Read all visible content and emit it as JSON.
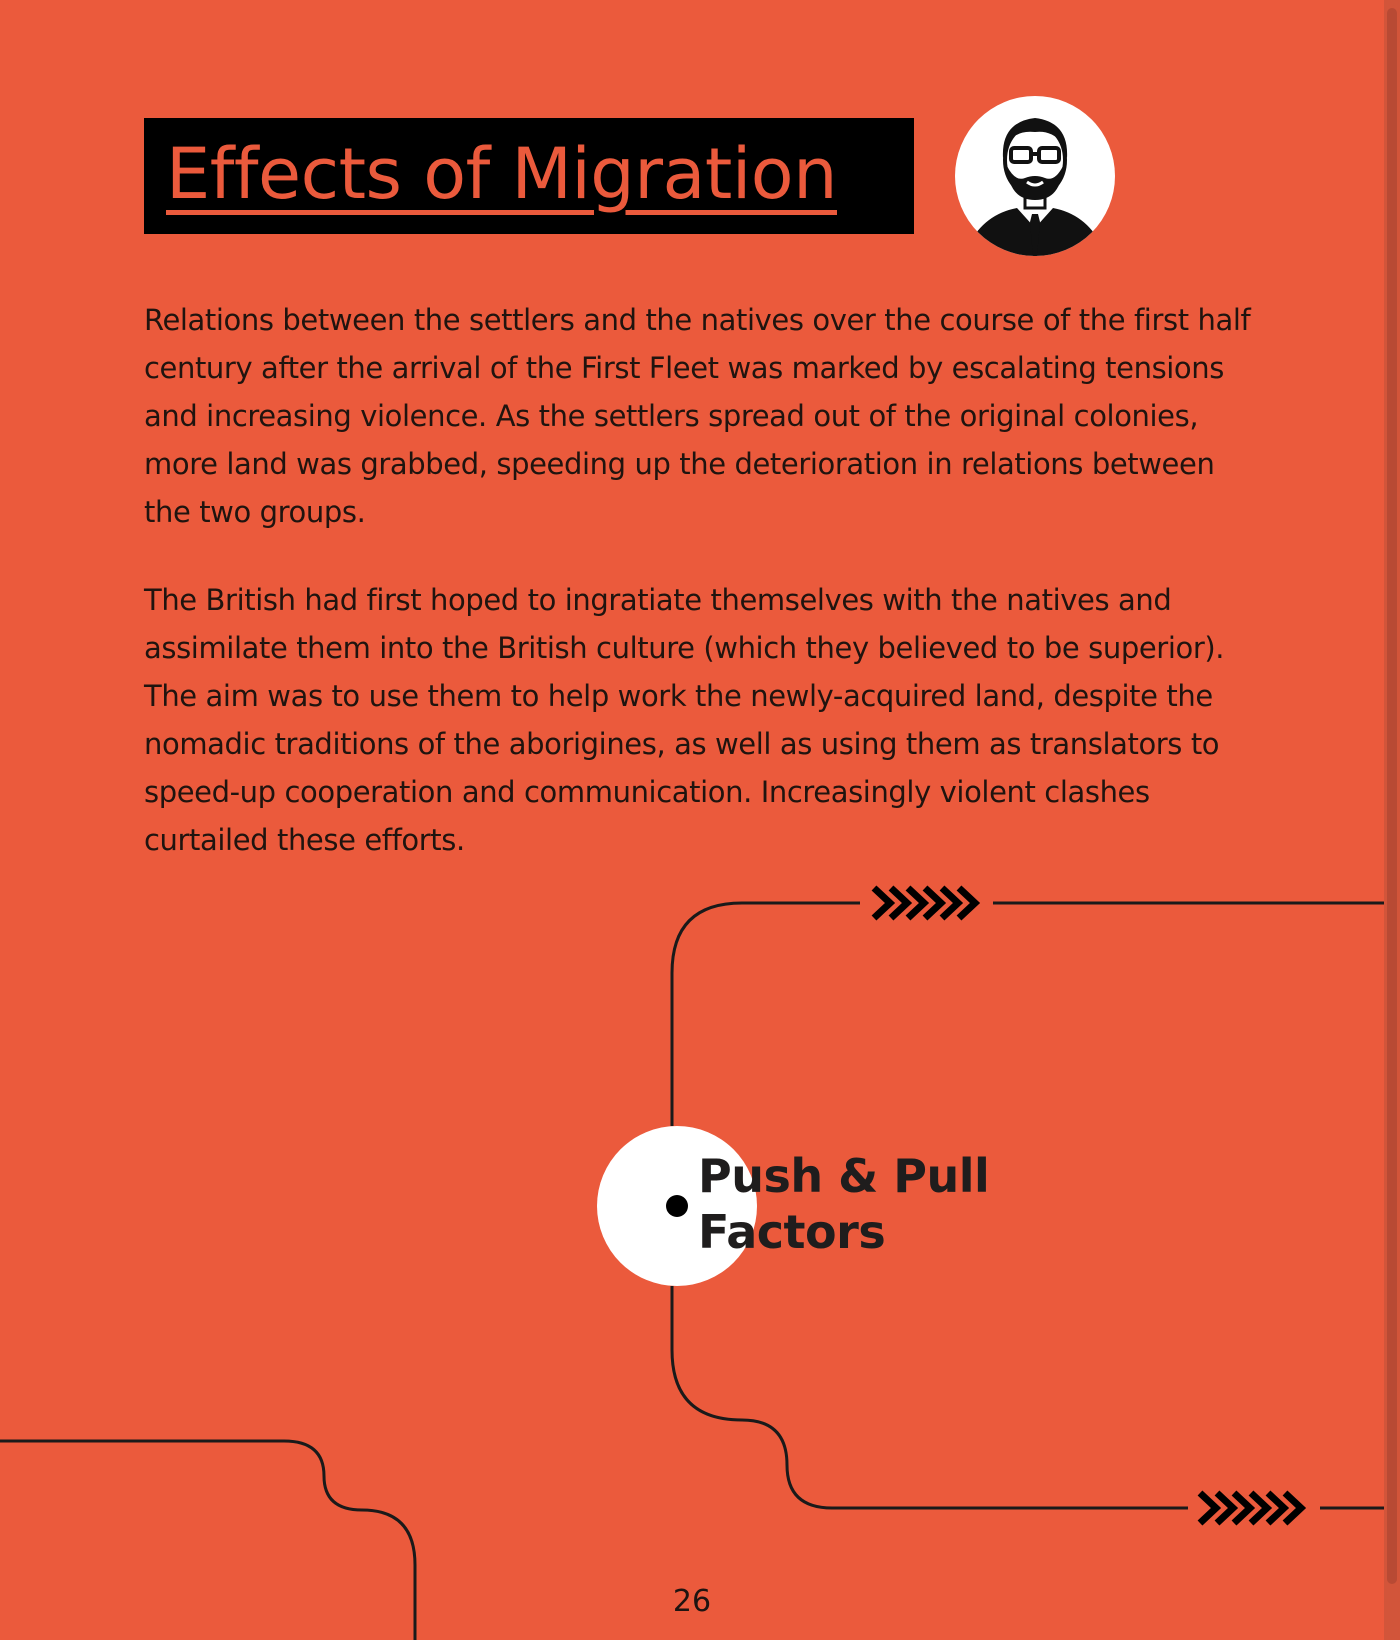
{
  "page": {
    "title": "Effects of Migration",
    "paragraphs": [
      "Relations between the settlers and the natives over the course of the first half century after the arrival of the First Fleet was marked by escalating tensions and increasing violence. As the settlers spread out of the original colonies, more land was grabbed, speeding up the deterioration in relations between the two groups.",
      "The British had first hoped to ingratiate themselves with the natives and assimilate them into the British culture (which they believed to be superior). The aim was to use them to help work the newly-acquired land, despite the nomadic traditions of the aborigines, as well as using them as translators to speed-up cooperation and communication. Increasingly violent clashes curtailed these efforts."
    ],
    "node_label": "Push & Pull\nFactors",
    "page_number": "26"
  },
  "icons": {
    "avatar": "man-with-glasses-beard-avatar-icon",
    "arrows": "chevron-arrows-icon"
  },
  "colors": {
    "background": "#EB5A3C",
    "title_box": "#000000",
    "title_text": "#EB5A3C",
    "text": "#20140F",
    "node_fill": "#FFFFFF",
    "line": "#1A1A1A"
  }
}
